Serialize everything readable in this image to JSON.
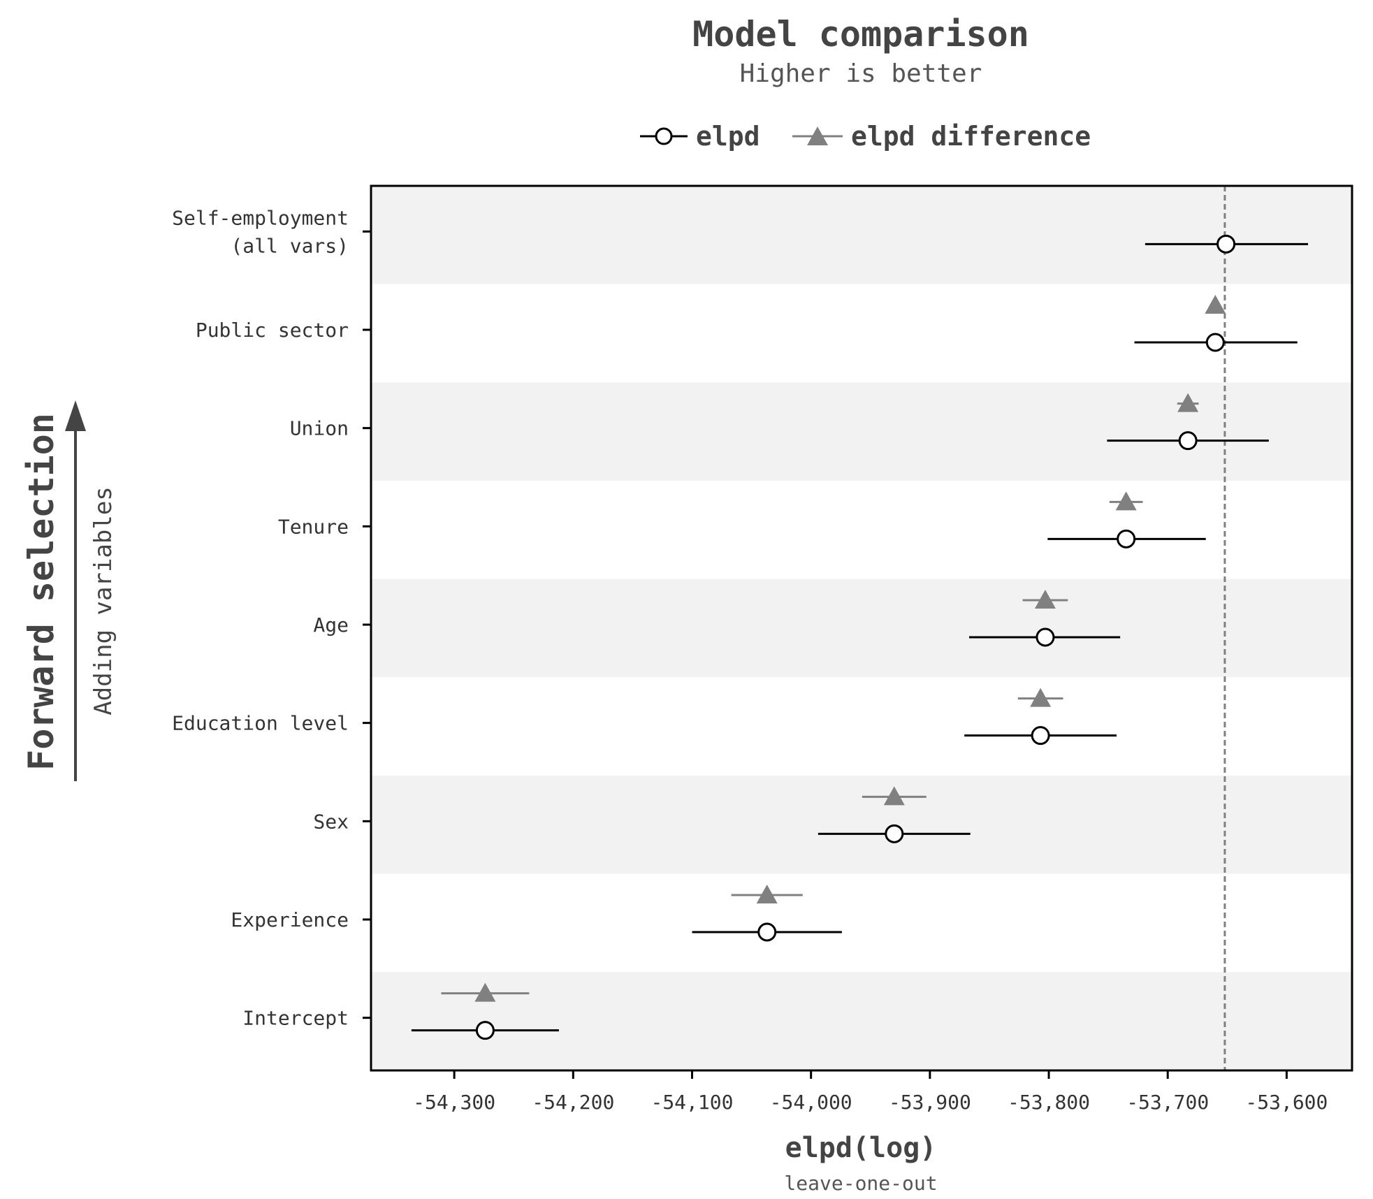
{
  "chart_data": {
    "type": "scatter",
    "title": "Model comparison",
    "subtitle": "Higher is better",
    "xlabel": "elpd(log)",
    "xlabel_sub": "leave-one-out",
    "side_title": "Forward selection",
    "side_subtitle": "Adding variables",
    "xlim": [
      -54370,
      -53545
    ],
    "xticks": [
      -54300,
      -54200,
      -54100,
      -54000,
      -53900,
      -53800,
      -53700,
      -53600
    ],
    "xtick_labels": [
      "-54,300",
      "-54,200",
      "-54,100",
      "-54,000",
      "-53,900",
      "-53,800",
      "-53,700",
      "-53,600"
    ],
    "reference_line": -53652,
    "legend": {
      "placement": "top",
      "entries": [
        {
          "name": "elpd",
          "marker": "circle-open",
          "color": "#000000"
        },
        {
          "name": "elpd difference",
          "marker": "triangle",
          "color": "#808080"
        }
      ]
    },
    "categories": [
      "Self-employment\n(all vars)",
      "Public sector",
      "Union",
      "Tenure",
      "Age",
      "Education level",
      "Sex",
      "Experience",
      "Intercept"
    ],
    "series": [
      {
        "name": "elpd",
        "values": [
          -53651,
          -53660,
          -53683,
          -53735,
          -53803,
          -53807,
          -53930,
          -54037,
          -54274
        ],
        "lower": [
          -53719,
          -53728,
          -53751,
          -53801,
          -53867,
          -53871,
          -53994,
          -54100,
          -54336
        ],
        "upper": [
          -53582,
          -53591,
          -53615,
          -53668,
          -53740,
          -53743,
          -53866,
          -53974,
          -54212
        ]
      },
      {
        "name": "elpd difference",
        "values": [
          null,
          -53660,
          -53683,
          -53735,
          -53803,
          -53807,
          -53930,
          -54037,
          -54274
        ],
        "lower": [
          null,
          -53660,
          -53692,
          -53749,
          -53822,
          -53826,
          -53957,
          -54067,
          -54311
        ],
        "upper": [
          null,
          -53660,
          -53674,
          -53721,
          -53784,
          -53788,
          -53903,
          -54007,
          -54237
        ]
      }
    ]
  }
}
